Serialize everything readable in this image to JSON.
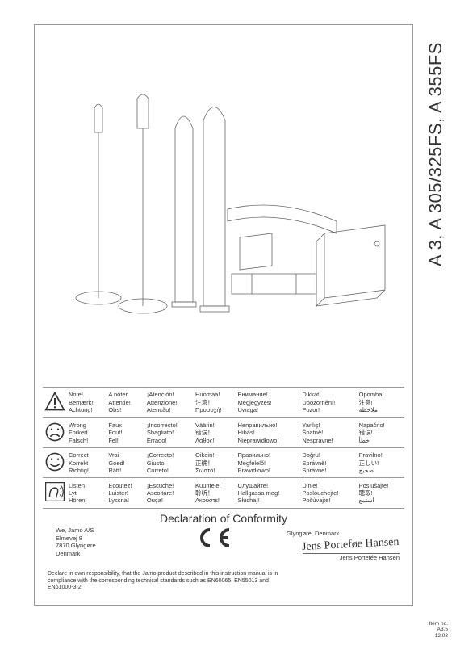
{
  "product_title": "A 3, A 305/325FS, A 355FS",
  "legend": {
    "rows": [
      {
        "icon": "warning",
        "cols": [
          [
            "Note!",
            "Bemærk!",
            "Achtung!"
          ],
          [
            "A noter",
            "Attentie!",
            "Obs!"
          ],
          [
            "¡Atención!",
            "Attenzione!",
            "Atenção!"
          ],
          [
            "Huomaa!",
            "注意！",
            "Προσοχή!"
          ],
          [
            "Внимание!",
            "Megjegyzés!",
            "Uwaga!"
          ],
          [
            "Dikkat!",
            "Upozornění!",
            "Pozor!"
          ],
          [
            "Opomba!",
            "注意!",
            "ملاحظة"
          ]
        ]
      },
      {
        "icon": "sad",
        "cols": [
          [
            "Wrong",
            "Forkert",
            "Falsch!"
          ],
          [
            "Faux",
            "Fout!",
            "Fel!"
          ],
          [
            "¡Incorrecto!",
            "Sbagliato!",
            "Errado!"
          ],
          [
            "Väärin!",
            "错误！",
            "Λάθος!"
          ],
          [
            "Неправильно!",
            "Hibás!",
            "Nieprawidłowo!"
          ],
          [
            "Yanlış!",
            "Špatně!",
            "Nesprávne!"
          ],
          [
            "Napačno!",
            "错误!",
            "خطأ"
          ]
        ]
      },
      {
        "icon": "happy",
        "cols": [
          [
            "Correct",
            "Korrekt",
            "Richtig!"
          ],
          [
            "Vrai",
            "Goed!",
            "Rätt!"
          ],
          [
            "¡Correcto!",
            "Giusto!",
            "Correto!"
          ],
          [
            "Oikein!",
            "正确！",
            "Σωστό!"
          ],
          [
            "Правильно!",
            "Megfelelő!",
            "Prawidłowo!"
          ],
          [
            "Doğru!",
            "Správně!",
            "Správne!"
          ],
          [
            "Pravilno!",
            "正しい!",
            "صحيح"
          ]
        ]
      },
      {
        "icon": "listen",
        "cols": [
          [
            "Listen",
            "Lyt",
            "Hören!"
          ],
          [
            "Ecoutez!",
            "Luister!",
            "Lyssna!"
          ],
          [
            "¡Escuche!",
            "Ascoltare!",
            "Ouça!"
          ],
          [
            "Kuuntele!",
            "聆听！",
            "Ακούστε!"
          ],
          [
            "Слушайте!",
            "Hallgassa meg!",
            "Słuchaj!"
          ],
          [
            "Dinle!",
            "Poslouchejte!",
            "Počúvajte!"
          ],
          [
            "Poslušajte!",
            "聴取!",
            "استمع"
          ]
        ]
      }
    ]
  },
  "declaration": {
    "title": "Declaration of Conformity",
    "address": [
      "We, Jamo A/S",
      "Elmevej 8",
      "7870 Glyngøre",
      "Denmark"
    ],
    "ce": "C€",
    "text": "Declare in own responsibility, that the Jamo product described in this instruction manual is in compliance with the corresponding technical standards such as EN60065, EN55013 and EN61000-3-2",
    "location": "Glyngøre, Denmark",
    "signature": "Jens Porteføe Hansen",
    "signed_name": "Jens Portefée Hansen"
  },
  "footer": {
    "line1": "Item no.",
    "line2": "A3.5",
    "line3": "12.03"
  },
  "colors": {
    "stroke": "#666666",
    "border": "#999999",
    "text": "#333333"
  }
}
